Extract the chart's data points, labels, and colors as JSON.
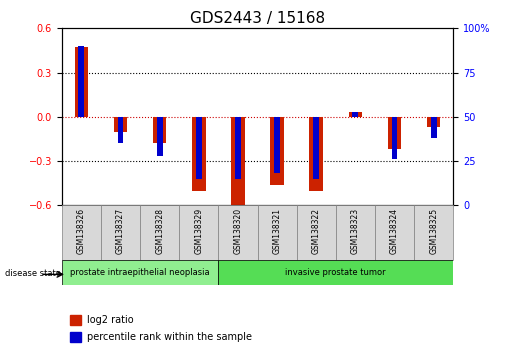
{
  "title": "GDS2443 / 15168",
  "samples": [
    "GSM138326",
    "GSM138327",
    "GSM138328",
    "GSM138329",
    "GSM138320",
    "GSM138321",
    "GSM138322",
    "GSM138323",
    "GSM138324",
    "GSM138325"
  ],
  "log2_ratio": [
    0.47,
    -0.1,
    -0.18,
    -0.5,
    -0.6,
    -0.46,
    -0.5,
    0.03,
    -0.22,
    -0.07
  ],
  "percentile_rank": [
    90,
    35,
    28,
    15,
    15,
    18,
    15,
    53,
    26,
    38
  ],
  "disease_groups": [
    {
      "label": "prostate intraepithelial neoplasia",
      "start": 0,
      "end": 4,
      "color": "#90ee90"
    },
    {
      "label": "invasive prostate tumor",
      "start": 4,
      "end": 10,
      "color": "#55dd55"
    }
  ],
  "ylim_left": [
    -0.6,
    0.6
  ],
  "ylim_right": [
    0,
    100
  ],
  "yticks_left": [
    -0.6,
    -0.3,
    0.0,
    0.3,
    0.6
  ],
  "yticks_right": [
    0,
    25,
    50,
    75,
    100
  ],
  "bar_color_red": "#cc2200",
  "bar_color_blue": "#0000cc",
  "grid_color": "black",
  "zero_line_color": "#cc0000",
  "bar_width": 0.35,
  "blue_bar_width": 0.15,
  "title_fontsize": 11,
  "tick_fontsize": 7,
  "legend_fontsize": 7,
  "sample_label_fontsize": 5.5,
  "disease_label_fontsize": 6
}
